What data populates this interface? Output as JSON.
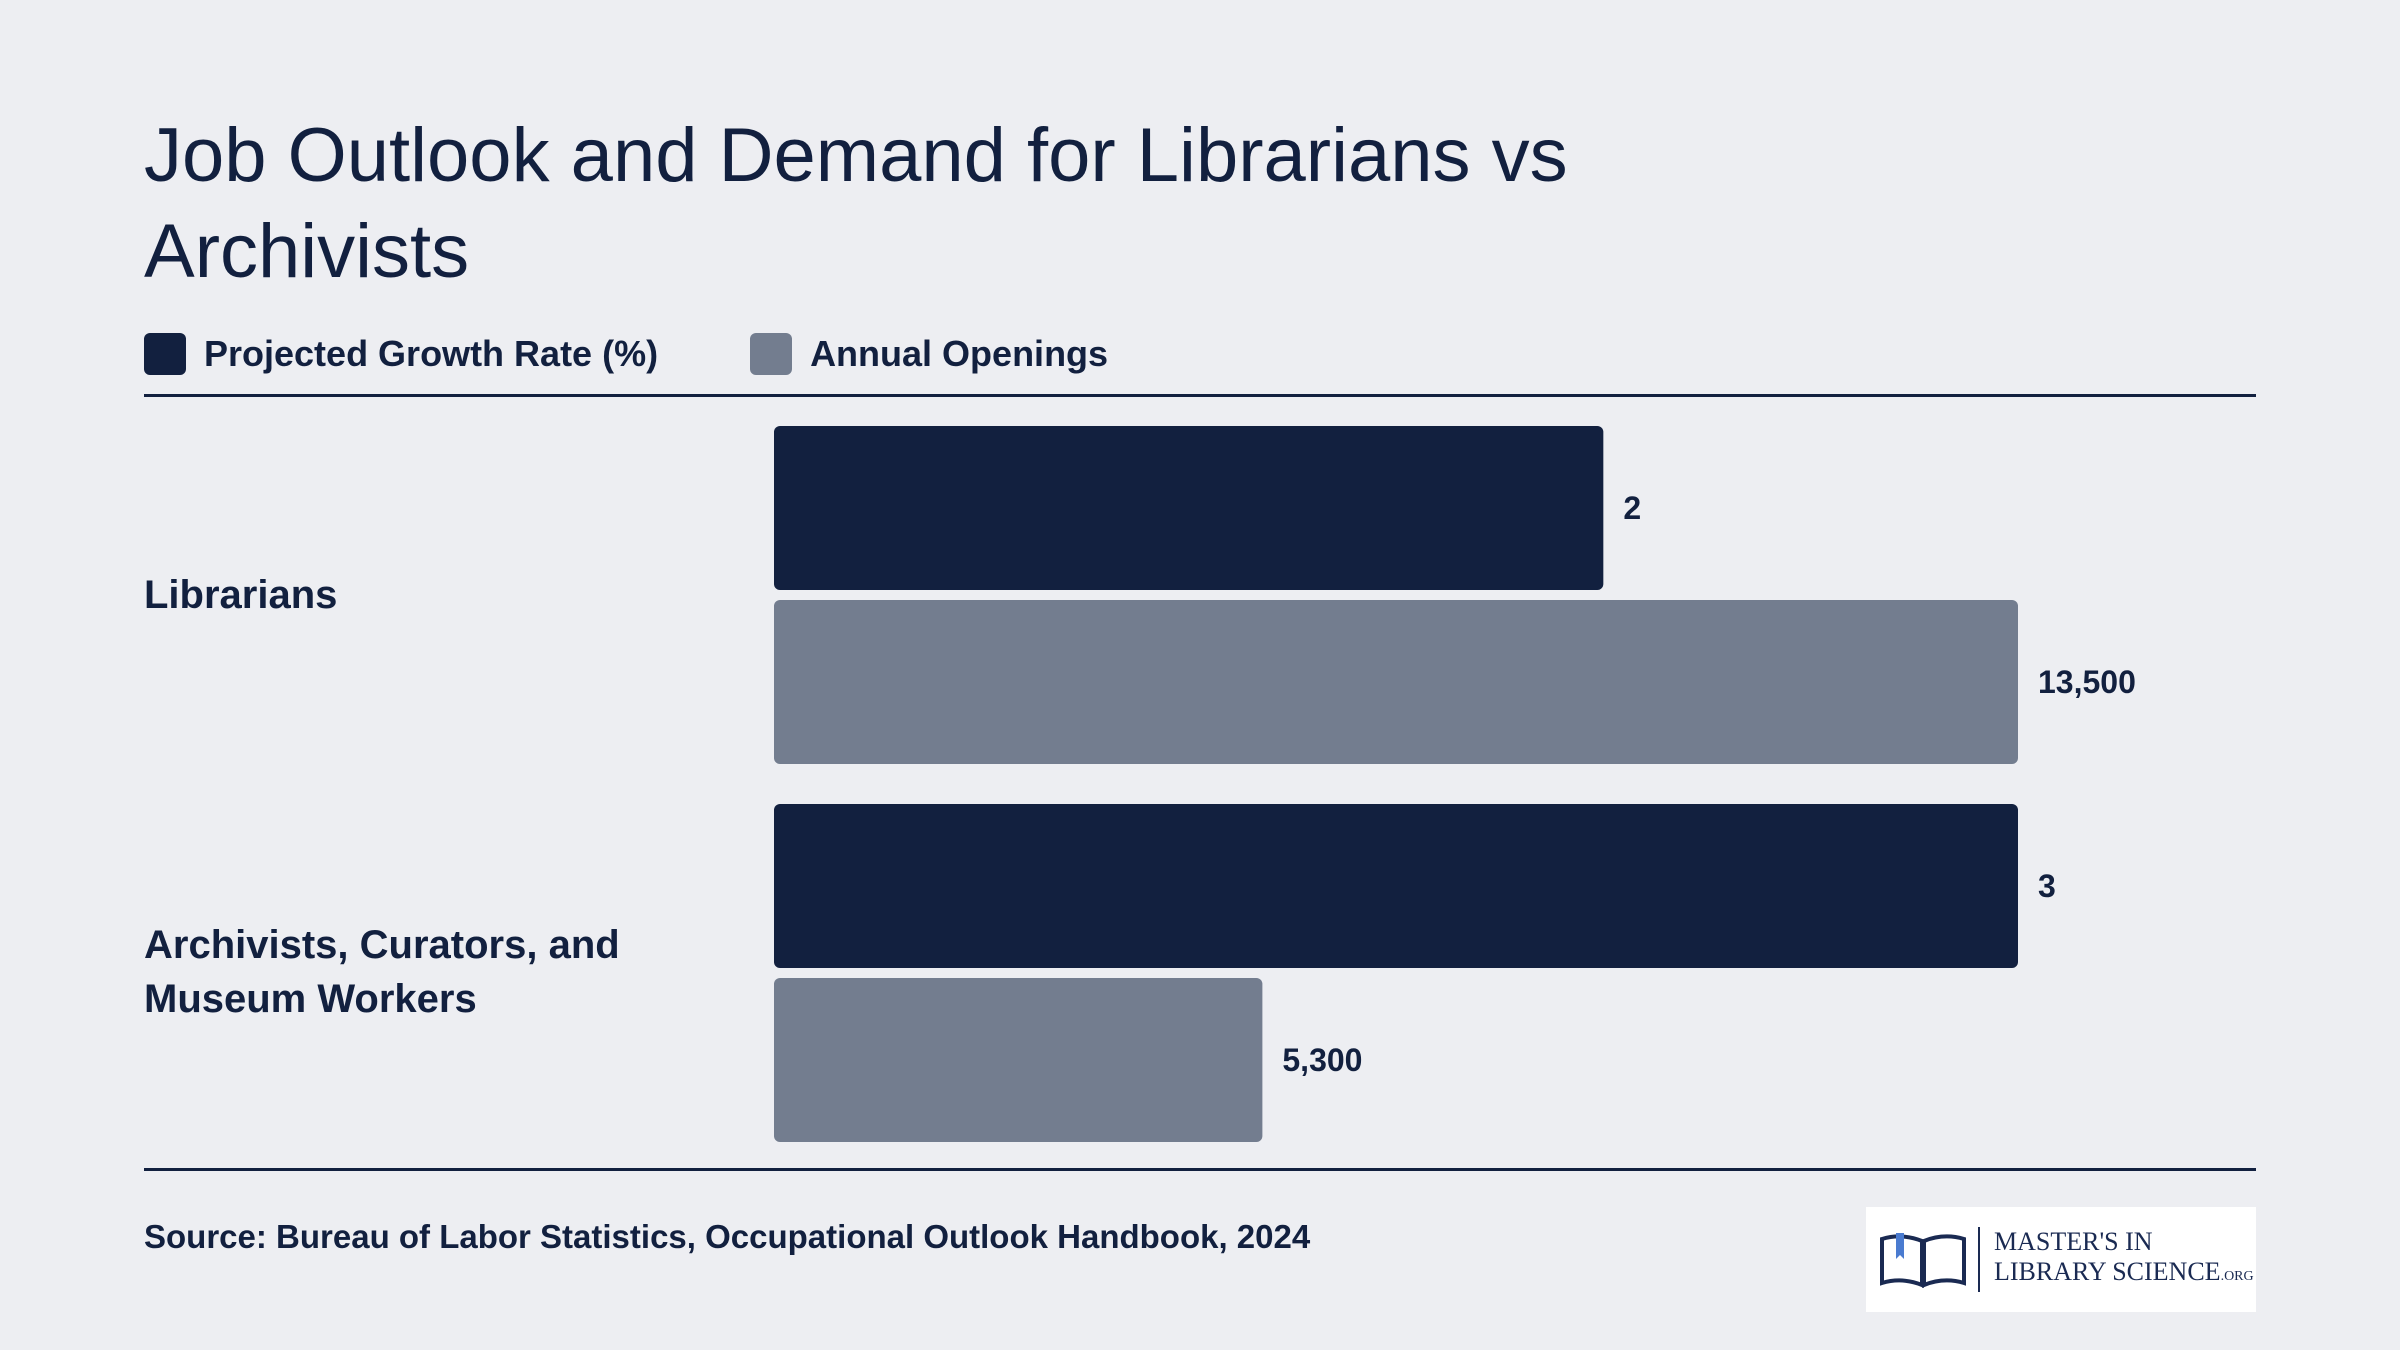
{
  "title": "Job Outlook and Demand for Librarians vs Archivists",
  "legend": [
    {
      "label": "Projected Growth Rate (%)",
      "color": "#12203f"
    },
    {
      "label": "Annual Openings",
      "color": "#737d8f"
    }
  ],
  "chart_data": {
    "type": "bar",
    "orientation": "horizontal",
    "title": "Job Outlook and Demand for Librarians vs Archivists",
    "categories": [
      "Librarians",
      "Archivists, Curators, and Museum Workers"
    ],
    "series": [
      {
        "name": "Projected Growth Rate (%)",
        "values": [
          2,
          3
        ],
        "labels": [
          "2",
          "3"
        ],
        "color": "#12203f"
      },
      {
        "name": "Annual Openings",
        "values": [
          13500,
          5300
        ],
        "labels": [
          "13,500",
          "5,300"
        ],
        "color": "#737d8f"
      }
    ],
    "grid": false,
    "legend_position": "top-left"
  },
  "source": "Source: Bureau of Labor Statistics, Occupational Outlook Handbook, 2024",
  "logo": {
    "line1": "MASTER'S IN",
    "line2": "LIBRARY SCIENCE",
    "suffix": ".ORG",
    "icon": "open-book-icon"
  }
}
